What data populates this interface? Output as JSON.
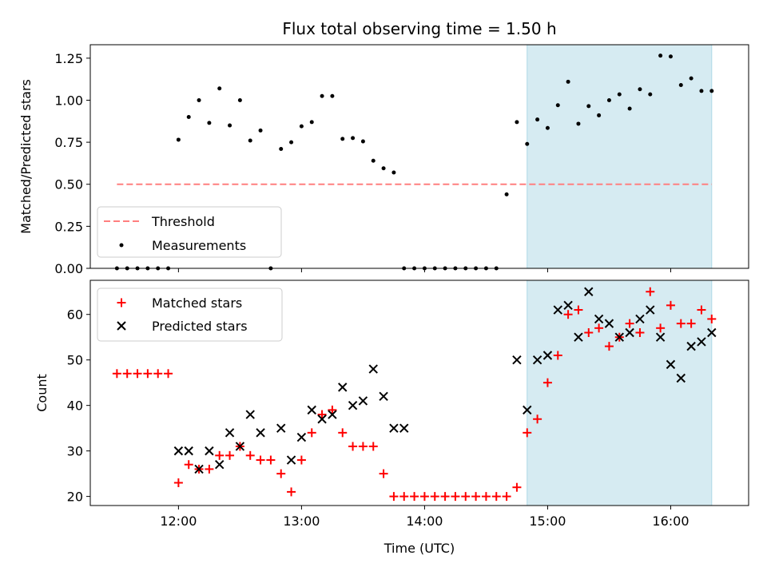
{
  "colors": {
    "threshold": "#ff7f7f",
    "measurement": "#000000",
    "matched": "#ff0000",
    "predicted": "#000000",
    "shade": "#add8e6"
  },
  "chart_data": [
    {
      "type": "scatter",
      "title": "Flux total observing time = 1.50 h",
      "xlabel": "",
      "ylabel": "Matched/Predicted stars",
      "xlim": [
        "11:17",
        "16:38"
      ],
      "ylim": [
        0,
        1.33
      ],
      "yticks": [
        "0.00",
        "0.25",
        "0.50",
        "0.75",
        "1.00",
        "1.25"
      ],
      "yticks_values": [
        0,
        0.25,
        0.5,
        0.75,
        1.0,
        1.25
      ],
      "shaded_interval": [
        "14:50",
        "16:20"
      ],
      "legend_position": "lower-left",
      "series": [
        {
          "name": "Threshold",
          "kind": "dashed-line",
          "x": [
            "11:30",
            "16:20"
          ],
          "y": [
            0.5,
            0.5
          ]
        },
        {
          "name": "Measurements",
          "kind": "dots",
          "x": [
            "11:30",
            "11:35",
            "11:40",
            "11:45",
            "11:50",
            "11:55",
            "12:00",
            "12:05",
            "12:10",
            "12:15",
            "12:20",
            "12:25",
            "12:30",
            "12:35",
            "12:40",
            "12:45",
            "12:50",
            "12:55",
            "13:00",
            "13:05",
            "13:10",
            "13:15",
            "13:20",
            "13:25",
            "13:30",
            "13:35",
            "13:40",
            "13:45",
            "13:50",
            "13:55",
            "14:00",
            "14:05",
            "14:10",
            "14:15",
            "14:20",
            "14:25",
            "14:30",
            "14:35",
            "14:40",
            "14:45",
            "14:50",
            "14:55",
            "15:00",
            "15:05",
            "15:10",
            "15:15",
            "15:20",
            "15:25",
            "15:30",
            "15:35",
            "15:40",
            "15:45",
            "15:50",
            "15:55",
            "16:00",
            "16:05",
            "16:10",
            "16:15",
            "16:20"
          ],
          "y": [
            0,
            0,
            0,
            0,
            0,
            0,
            0.765,
            0.9,
            1.0,
            0.865,
            1.07,
            0.85,
            1.0,
            0.76,
            0.82,
            0,
            0.71,
            0.75,
            0.845,
            0.87,
            1.025,
            1.025,
            0.77,
            0.775,
            0.755,
            0.64,
            0.595,
            0.57,
            0,
            0,
            0,
            0,
            0,
            0,
            0,
            0,
            0,
            0,
            0.44,
            0.87,
            0.74,
            0.885,
            0.835,
            0.97,
            1.11,
            0.86,
            0.965,
            0.91,
            1.0,
            1.035,
            0.95,
            1.065,
            1.035,
            1.265,
            1.26,
            1.09,
            1.13,
            1.055,
            1.055
          ]
        }
      ]
    },
    {
      "type": "scatter",
      "title": "",
      "xlabel": "Time (UTC)",
      "ylabel": "Count",
      "xlim": [
        "11:17",
        "16:38"
      ],
      "ylim": [
        18,
        67.5
      ],
      "yticks": [
        "20",
        "30",
        "40",
        "50",
        "60"
      ],
      "yticks_values": [
        20,
        30,
        40,
        50,
        60
      ],
      "xticks": [
        "12:00",
        "13:00",
        "14:00",
        "15:00",
        "16:00"
      ],
      "shaded_interval": [
        "14:50",
        "16:20"
      ],
      "legend_position": "upper-left",
      "series": [
        {
          "name": "Matched stars",
          "marker": "plus",
          "x": [
            "11:30",
            "11:35",
            "11:40",
            "11:45",
            "11:50",
            "11:55",
            "12:00",
            "12:05",
            "12:10",
            "12:15",
            "12:20",
            "12:25",
            "12:30",
            "12:35",
            "12:40",
            "12:45",
            "12:50",
            "12:55",
            "13:00",
            "13:05",
            "13:10",
            "13:15",
            "13:20",
            "13:25",
            "13:30",
            "13:35",
            "13:40",
            "13:45",
            "13:50",
            "13:55",
            "14:00",
            "14:05",
            "14:10",
            "14:15",
            "14:20",
            "14:25",
            "14:30",
            "14:35",
            "14:40",
            "14:45",
            "14:50",
            "14:55",
            "15:00",
            "15:05",
            "15:10",
            "15:15",
            "15:20",
            "15:25",
            "15:30",
            "15:35",
            "15:40",
            "15:45",
            "15:50",
            "15:55",
            "16:00",
            "16:05",
            "16:10",
            "16:15",
            "16:20"
          ],
          "y": [
            47,
            47,
            47,
            47,
            47,
            47,
            23,
            27,
            26,
            26,
            29,
            29,
            31,
            29,
            28,
            28,
            25,
            21,
            28,
            34,
            38,
            39,
            34,
            31,
            31,
            31,
            25,
            20,
            20,
            20,
            20,
            20,
            20,
            20,
            20,
            20,
            20,
            20,
            20,
            22,
            34,
            37,
            45,
            51,
            60,
            61,
            56,
            57,
            53,
            55,
            58,
            56,
            65,
            57,
            62,
            58,
            58,
            61,
            59
          ]
        },
        {
          "name": "Predicted stars",
          "marker": "x",
          "x": [
            "12:00",
            "12:05",
            "12:10",
            "12:15",
            "12:20",
            "12:25",
            "12:30",
            "12:35",
            "12:40",
            "12:50",
            "12:55",
            "13:00",
            "13:05",
            "13:10",
            "13:15",
            "13:20",
            "13:25",
            "13:30",
            "13:35",
            "13:40",
            "13:45",
            "13:50",
            "14:45",
            "14:50",
            "14:55",
            "15:00",
            "15:05",
            "15:10",
            "15:15",
            "15:20",
            "15:25",
            "15:30",
            "15:35",
            "15:40",
            "15:45",
            "15:50",
            "15:55",
            "16:00",
            "16:05",
            "16:10",
            "16:15",
            "16:20"
          ],
          "y": [
            30,
            30,
            26,
            30,
            27,
            34,
            31,
            38,
            34,
            35,
            28,
            33,
            39,
            37,
            38,
            44,
            40,
            41,
            48,
            42,
            35,
            35,
            50,
            39,
            50,
            51,
            61,
            62,
            55,
            65,
            59,
            58,
            55,
            56,
            59,
            61,
            55,
            49,
            46,
            53,
            54,
            56
          ]
        }
      ]
    }
  ]
}
